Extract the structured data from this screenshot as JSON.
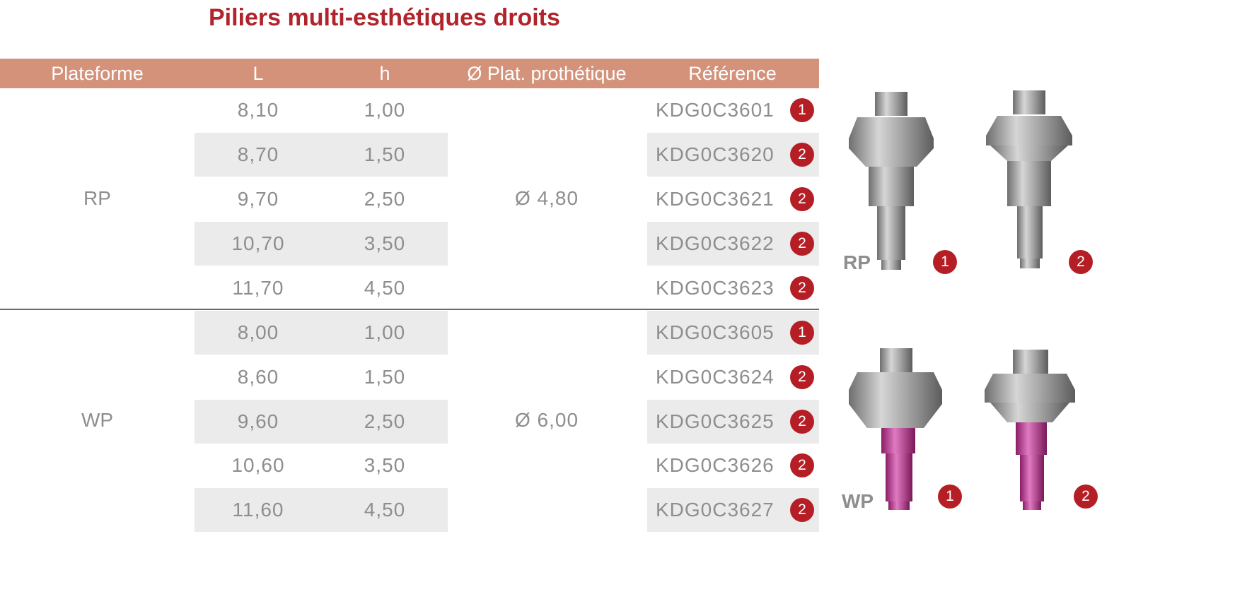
{
  "title": "Piliers multi-esthétiques droits",
  "headers": {
    "plateforme": "Plateforme",
    "l": "L",
    "h": "h",
    "plat": "Ø Plat. prothétique",
    "reference": "Référence"
  },
  "groups": [
    {
      "platform": "RP",
      "diameter": "Ø 4,80",
      "rows": [
        {
          "L": "8,10",
          "h": "1,00",
          "ref": "KDG0C3601",
          "badge": "1"
        },
        {
          "L": "8,70",
          "h": "1,50",
          "ref": "KDG0C3620",
          "badge": "2"
        },
        {
          "L": "9,70",
          "h": "2,50",
          "ref": "KDG0C3621",
          "badge": "2"
        },
        {
          "L": "10,70",
          "h": "3,50",
          "ref": "KDG0C3622",
          "badge": "2"
        },
        {
          "L": "11,70",
          "h": "4,50",
          "ref": "KDG0C3623",
          "badge": "2"
        }
      ]
    },
    {
      "platform": "WP",
      "diameter": "Ø 6,00",
      "rows": [
        {
          "L": "8,00",
          "h": "1,00",
          "ref": "KDG0C3605",
          "badge": "1"
        },
        {
          "L": "8,60",
          "h": "1,50",
          "ref": "KDG0C3624",
          "badge": "2"
        },
        {
          "L": "9,60",
          "h": "2,50",
          "ref": "KDG0C3625",
          "badge": "2"
        },
        {
          "L": "10,60",
          "h": "3,50",
          "ref": "KDG0C3626",
          "badge": "2"
        },
        {
          "L": "11,60",
          "h": "4,50",
          "ref": "KDG0C3627",
          "badge": "2"
        }
      ]
    }
  ],
  "images": {
    "rp_label": "RP",
    "wp_label": "WP",
    "rp_badges": [
      "1",
      "2"
    ],
    "wp_badges": [
      "1",
      "2"
    ]
  },
  "colors": {
    "title": "#b0242c",
    "header_bg": "#d4927a",
    "badge": "#b51e25",
    "stripe": "#ebebeb",
    "text": "#8e8e8e",
    "screw_rp": "#9a9a9a",
    "screw_wp": "#c84a9c"
  }
}
